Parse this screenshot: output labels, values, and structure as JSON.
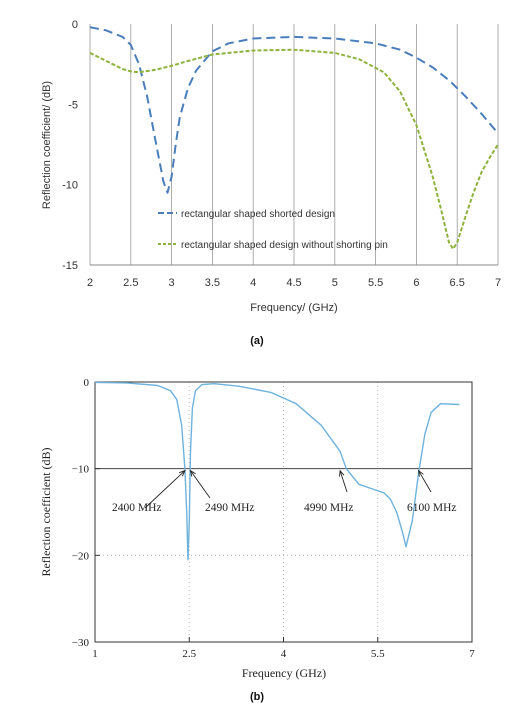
{
  "chart_data": [
    {
      "type": "line",
      "caption": "(a)",
      "xlabel": "Frequency/ (GHz)",
      "ylabel": "Reflection coefficient/ (dB)",
      "xlim": [
        2,
        7
      ],
      "ylim": [
        -15,
        0
      ],
      "x_ticks": [
        "2",
        "2.5",
        "3",
        "3.5",
        "4",
        "4.5",
        "5",
        "5.5",
        "6",
        "6.5",
        "7"
      ],
      "y_ticks": [
        "0",
        "-5",
        "-10",
        "-15"
      ],
      "grid": "vertical",
      "legend": "lower-left",
      "series": [
        {
          "name": "rectangular shaped shorted design",
          "color": "#4a7ebb",
          "style": "dashed",
          "x": [
            2.0,
            2.2,
            2.4,
            2.5,
            2.6,
            2.7,
            2.8,
            2.9,
            2.95,
            3.0,
            3.05,
            3.1,
            3.2,
            3.3,
            3.5,
            3.7,
            4.0,
            4.5,
            5.0,
            5.5,
            5.8,
            6.0,
            6.2,
            6.4,
            6.6,
            6.8,
            7.0
          ],
          "y": [
            -0.2,
            -0.4,
            -0.8,
            -1.3,
            -2.5,
            -4.5,
            -7.2,
            -9.8,
            -10.5,
            -9.5,
            -7.5,
            -5.8,
            -4.0,
            -2.9,
            -1.7,
            -1.2,
            -0.9,
            -0.8,
            -0.9,
            -1.2,
            -1.6,
            -2.1,
            -2.7,
            -3.5,
            -4.5,
            -5.6,
            -6.8
          ]
        },
        {
          "name": "rectangular shaped design without shorting pin",
          "color": "#8db33c",
          "style": "dotted",
          "x": [
            2.0,
            2.2,
            2.4,
            2.5,
            2.6,
            2.8,
            3.0,
            3.2,
            3.5,
            4.0,
            4.5,
            5.0,
            5.3,
            5.6,
            5.8,
            6.0,
            6.2,
            6.3,
            6.4,
            6.45,
            6.5,
            6.6,
            6.7,
            6.8,
            6.9,
            7.0
          ],
          "y": [
            -1.8,
            -2.3,
            -2.8,
            -2.95,
            -3.0,
            -2.85,
            -2.6,
            -2.3,
            -1.9,
            -1.65,
            -1.6,
            -1.8,
            -2.2,
            -3.0,
            -4.2,
            -6.3,
            -9.5,
            -11.5,
            -13.6,
            -14.0,
            -13.6,
            -12.0,
            -10.5,
            -9.2,
            -8.3,
            -7.5
          ]
        }
      ]
    },
    {
      "type": "line",
      "caption": "(b)",
      "xlabel": "Frequency (GHz)",
      "ylabel": "Reflection coefficient (dB)",
      "xlim": [
        1,
        7
      ],
      "ylim": [
        -30,
        0
      ],
      "x_ticks": [
        "1",
        "2.5",
        "4",
        "5.5",
        "7"
      ],
      "y_ticks": [
        "0",
        "−10",
        "−20",
        "−30"
      ],
      "reference_line": -10,
      "annotations": [
        "2400 MHz",
        "2490 MHz",
        "4990 MHz",
        "6100 MHz"
      ],
      "series": [
        {
          "color": "#6fb2dc",
          "style": "solid",
          "x": [
            1.0,
            1.5,
            2.0,
            2.2,
            2.3,
            2.38,
            2.43,
            2.46,
            2.48,
            2.5,
            2.52,
            2.55,
            2.6,
            2.7,
            2.9,
            3.3,
            3.8,
            4.2,
            4.6,
            4.9,
            5.0,
            5.2,
            5.4,
            5.6,
            5.7,
            5.8,
            5.9,
            5.95,
            6.05,
            6.15,
            6.25,
            6.35,
            6.5,
            6.8
          ],
          "y": [
            -0.05,
            -0.1,
            -0.4,
            -1.0,
            -2.0,
            -5.0,
            -10.0,
            -15.0,
            -20.5,
            -16.0,
            -8.0,
            -3.0,
            -1.0,
            -0.3,
            -0.2,
            -0.5,
            -1.2,
            -2.5,
            -5.0,
            -8.0,
            -10.0,
            -11.8,
            -12.3,
            -12.8,
            -13.5,
            -15.0,
            -17.5,
            -19.0,
            -16.0,
            -10.5,
            -6.0,
            -3.5,
            -2.5,
            -2.6
          ]
        }
      ]
    }
  ]
}
